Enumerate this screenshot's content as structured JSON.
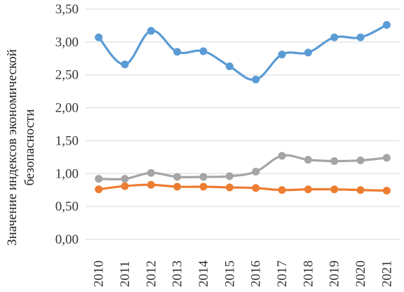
{
  "chart_data": {
    "type": "line",
    "title": "",
    "xlabel": "",
    "ylabel_lines": [
      "Значение индексов экономической",
      "безопасности"
    ],
    "x": [
      "2010",
      "2011",
      "2012",
      "2013",
      "2014",
      "2015",
      "2016",
      "2017",
      "2018",
      "2019",
      "2020",
      "2021"
    ],
    "ylim": [
      0,
      3.5
    ],
    "yticks": [
      "0,00",
      "0,50",
      "1,00",
      "1,50",
      "2,00",
      "2,50",
      "3,00",
      "3,50"
    ],
    "grid": true,
    "legend": false,
    "series": [
      {
        "color": "#5b9bd5",
        "values": [
          3.07,
          2.66,
          3.17,
          2.85,
          2.86,
          2.63,
          2.43,
          2.81,
          2.84,
          3.07,
          3.07,
          3.26
        ]
      },
      {
        "color": "#ed7d31",
        "values": [
          0.76,
          0.81,
          0.83,
          0.8,
          0.8,
          0.79,
          0.78,
          0.75,
          0.76,
          0.76,
          0.75,
          0.74
        ]
      },
      {
        "color": "#a5a5a5",
        "values": [
          0.92,
          0.92,
          1.01,
          0.95,
          0.95,
          0.96,
          1.03,
          1.27,
          1.21,
          1.19,
          1.2,
          1.24
        ]
      }
    ]
  }
}
